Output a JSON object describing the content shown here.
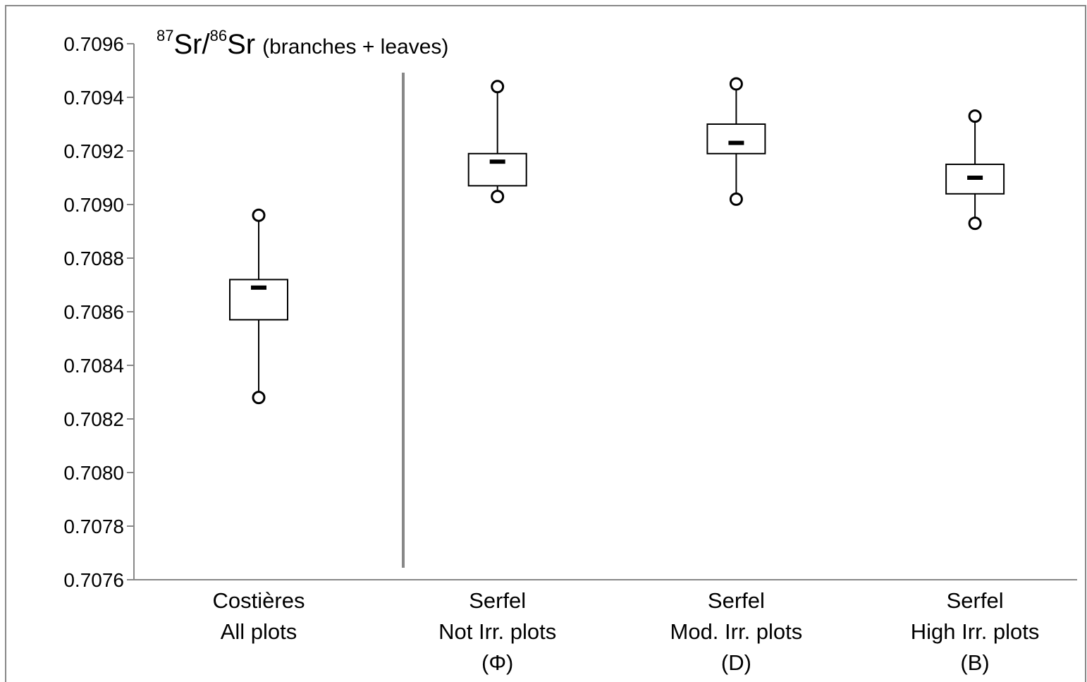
{
  "chart_data": {
    "type": "box",
    "title_parts": [
      "87",
      "Sr/",
      "86",
      "Sr",
      "(branches + leaves)"
    ],
    "categories": [
      [
        "Costières",
        "All plots"
      ],
      [
        "Serfel",
        "Not Irr. plots",
        "(Φ)"
      ],
      [
        "Serfel",
        "Mod. Irr. plots",
        "(D)"
      ],
      [
        "Serfel",
        "High Irr. plots",
        "(B)"
      ]
    ],
    "boxes": [
      {
        "min": 0.70828,
        "q1": 0.70857,
        "median": 0.70869,
        "q3": 0.70872,
        "max": 0.70896
      },
      {
        "min": 0.70903,
        "q1": 0.70907,
        "median": 0.70916,
        "q3": 0.70919,
        "max": 0.70944
      },
      {
        "min": 0.70902,
        "q1": 0.70919,
        "median": 0.70923,
        "q3": 0.7093,
        "max": 0.70945
      },
      {
        "min": 0.70893,
        "q1": 0.70904,
        "median": 0.7091,
        "q3": 0.70915,
        "max": 0.70933
      }
    ],
    "color": "#000000",
    "ylim": [
      0.7076,
      0.7096
    ],
    "yticks": [
      0.7076,
      0.7078,
      {
        "value": 0.708,
        "label": "0.7080"
      },
      0.7082,
      0.7084,
      0.7086,
      0.7088,
      {
        "value": 0.709,
        "label": "0.7090"
      },
      0.7092,
      0.7094,
      0.7096
    ],
    "grid": false
  }
}
